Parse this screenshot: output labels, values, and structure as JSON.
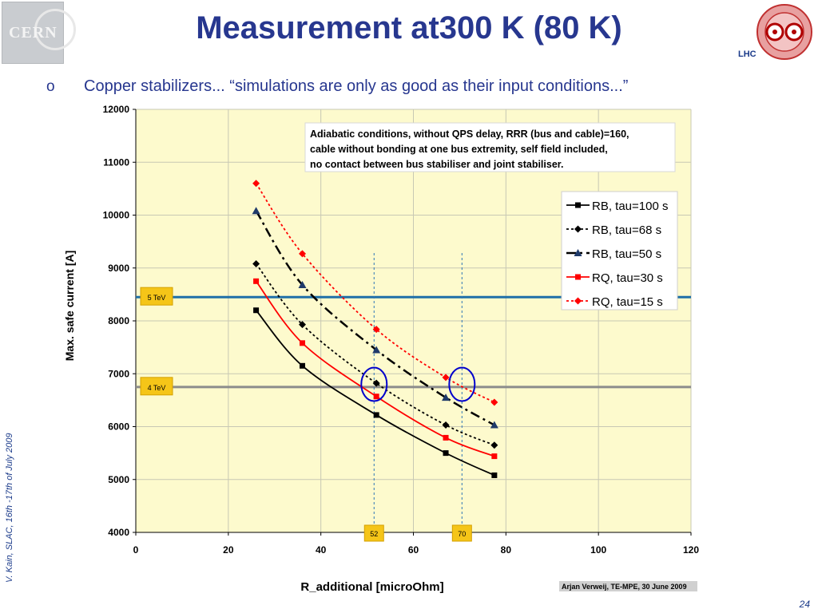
{
  "slide": {
    "title": "Measurement at300 K (80 K)",
    "bullet_marker": "o",
    "bullet": "Copper stabilizers... “simulations are only as good as their input conditions...”",
    "logo_left_text": "CERN",
    "logo_right_text": "LHC",
    "side_credit": "V. Kain, SLAC, 16th -17th of July 2009",
    "page_number": "24"
  },
  "chart_data": {
    "type": "line",
    "xlabel": "R_additional [microOhm]",
    "ylabel": "Max. safe current [A]",
    "xlim": [
      0,
      120
    ],
    "ylim": [
      4000,
      12000
    ],
    "xticks": [
      0,
      20,
      40,
      60,
      80,
      100,
      120
    ],
    "yticks": [
      4000,
      5000,
      6000,
      7000,
      8000,
      9000,
      10000,
      11000,
      12000
    ],
    "grid": true,
    "legend_position": "right",
    "x": [
      26,
      36,
      52,
      67,
      77.5
    ],
    "series": [
      {
        "name": "RB, tau=100 s",
        "color": "#000000",
        "dash": "solid",
        "marker": "square",
        "values": [
          8200,
          7150,
          6220,
          5500,
          5080
        ]
      },
      {
        "name": "RB, tau=68 s",
        "color": "#000000",
        "dash": "dot",
        "marker": "diamond",
        "values": [
          9080,
          7930,
          6820,
          6030,
          5650
        ]
      },
      {
        "name": "RB, tau=50 s",
        "color": "#000000",
        "dash": "dashdot",
        "marker": "triangle",
        "values": [
          10080,
          8680,
          7450,
          6550,
          6030
        ]
      },
      {
        "name": "RQ, tau=30 s",
        "color": "#ff0000",
        "dash": "solid",
        "marker": "square",
        "values": [
          8750,
          7580,
          6570,
          5790,
          5440
        ]
      },
      {
        "name": "RQ, tau=15 s",
        "color": "#ff0000",
        "dash": "dot",
        "marker": "diamond",
        "values": [
          10600,
          9270,
          7840,
          6930,
          6460
        ]
      }
    ],
    "hlines": [
      {
        "label": "5 TeV",
        "y": 8450,
        "color": "#1f6fa8"
      },
      {
        "label": "4 TeV",
        "y": 6750,
        "color": "#8c8c8c"
      }
    ],
    "vlines": [
      {
        "label": "52",
        "x": 51.5
      },
      {
        "label": "70",
        "x": 70.5
      }
    ],
    "circles": [
      {
        "x": 51.5,
        "y": 6800
      },
      {
        "x": 70.5,
        "y": 6800
      }
    ],
    "annotation": "Adiabatic conditions, without QPS delay, RRR (bus and cable)=160, cable without bonding at one bus extremity, self field included, no contact between bus stabiliser and joint stabiliser.",
    "source_note": "Arjan Verweij, TE-MPE, 30 June 2009",
    "colors": {
      "plot_bg": "#fdfacd",
      "grid": "#c8c8b4",
      "tag_bg": "#f5c518"
    }
  }
}
